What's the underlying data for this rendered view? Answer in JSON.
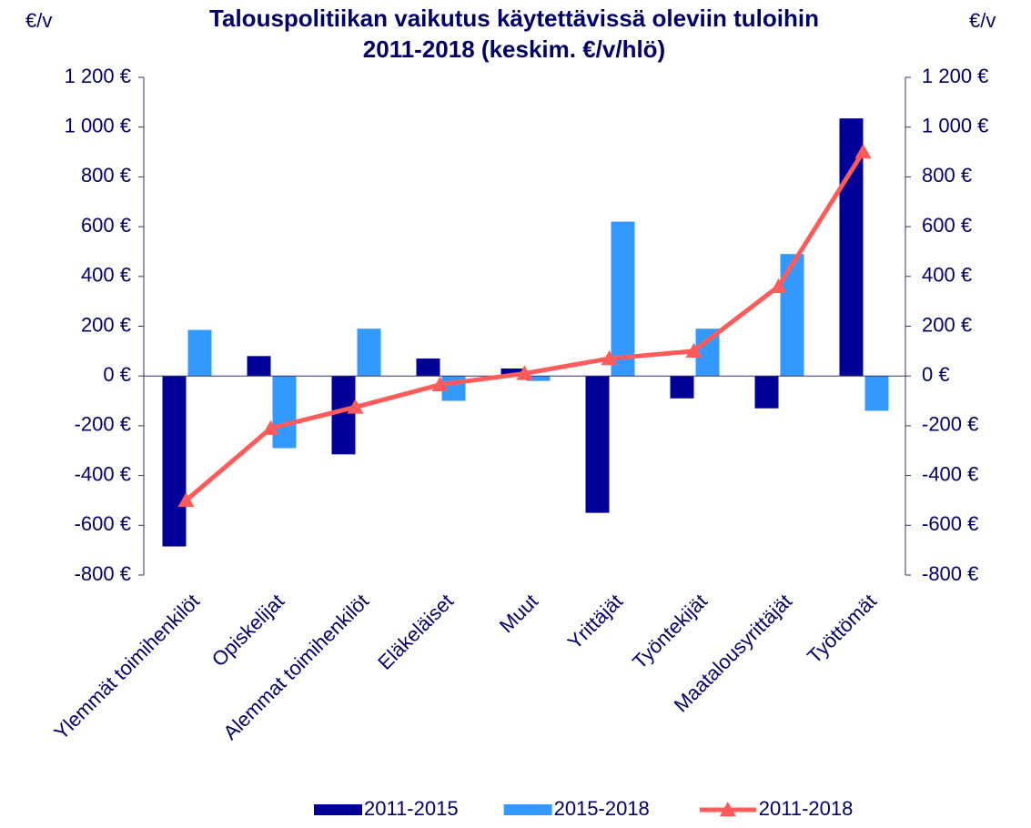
{
  "chart_data": {
    "type": "bar",
    "title": [
      "Talouspolitiikan vaikutus käytettävissä oleviin tuloihin",
      "2011-2018 (keskim. €/v/hlö)"
    ],
    "y_label": "€/v",
    "y2_label": "€/v",
    "categories": [
      "Ylemmät toimihenkilöt",
      "Opiskelijat",
      "Alemmat toimihenkilöt",
      "Eläkeläiset",
      "Muut",
      "Yrittäjät",
      "Työntekijät",
      "Maatalousyrittäjät",
      "Työttömät"
    ],
    "series": [
      {
        "name": "2011-2015",
        "type": "bar",
        "color": "#000099",
        "values": [
          -685,
          80,
          -315,
          70,
          30,
          -550,
          -90,
          -130,
          1035
        ]
      },
      {
        "name": "2015-2018",
        "type": "bar",
        "color": "#3399ff",
        "values": [
          185,
          -290,
          190,
          -100,
          -20,
          620,
          190,
          490,
          -140
        ]
      },
      {
        "name": "2011-2018",
        "type": "line",
        "axis": "y2",
        "color": "#ff5b5b",
        "values": [
          -500,
          -210,
          -125,
          -35,
          10,
          70,
          100,
          360,
          900
        ]
      }
    ],
    "ylim": [
      -800,
      1200
    ],
    "yticks": [
      {
        "value": -800,
        "label": "-800 €"
      },
      {
        "value": -600,
        "label": "-600 €"
      },
      {
        "value": -400,
        "label": "-400 €"
      },
      {
        "value": -200,
        "label": "-200 €"
      },
      {
        "value": 0,
        "label": "0 €"
      },
      {
        "value": 200,
        "label": "200 €"
      },
      {
        "value": 400,
        "label": "400 €"
      },
      {
        "value": 600,
        "label": "600 €"
      },
      {
        "value": 800,
        "label": "800 €"
      },
      {
        "value": 1000,
        "label": "1 000 €"
      },
      {
        "value": 1200,
        "label": "1 200 €"
      }
    ],
    "y2lim": [
      -800,
      1200
    ],
    "y2ticks": [
      {
        "value": -800,
        "label": "-800 €"
      },
      {
        "value": -600,
        "label": "-600 €"
      },
      {
        "value": -400,
        "label": "-400 €"
      },
      {
        "value": -200,
        "label": "-200 €"
      },
      {
        "value": 0,
        "label": "0 €"
      },
      {
        "value": 200,
        "label": "200 €"
      },
      {
        "value": 400,
        "label": "400 €"
      },
      {
        "value": 600,
        "label": "600 €"
      },
      {
        "value": 800,
        "label": "800 €"
      },
      {
        "value": 1000,
        "label": "1 000 €"
      },
      {
        "value": 1200,
        "label": "1 200 €"
      }
    ],
    "grid": false,
    "legend": "bottom"
  }
}
